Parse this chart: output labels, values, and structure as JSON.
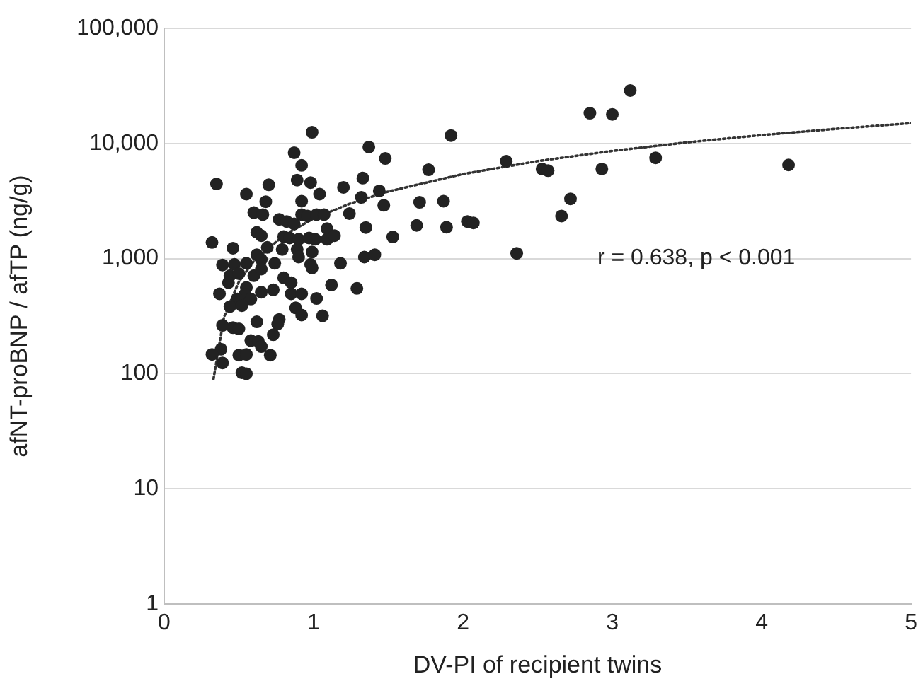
{
  "chart_data": {
    "type": "scatter",
    "xlabel": "DV-PI of recipient twins",
    "ylabel": "afNT-proBNP / afTP (ng/g)",
    "annotations": [
      "r = 0.638, p < 0.001"
    ],
    "xlim": [
      0,
      5
    ],
    "xticks": [
      0,
      1,
      2,
      3,
      4,
      5
    ],
    "ylim": [
      1,
      100000
    ],
    "yticks": [
      1,
      10,
      {
        "value": 100,
        "label": "100"
      },
      {
        "value": 1000,
        "label": "1,000"
      },
      {
        "value": 10000,
        "label": "10,000"
      },
      {
        "value": 100000,
        "label": "100,000"
      }
    ],
    "log": "y",
    "grid": "y",
    "legend": false,
    "marker": "circle",
    "series": [
      {
        "type": "scatter",
        "color": "#222222",
        "x": [
          0.99,
          1.37,
          1.48,
          0.87,
          0.92,
          0.35,
          0.7,
          0.89,
          0.98,
          1.33,
          1.2,
          1.44,
          0.55,
          0.68,
          0.92,
          1.04,
          1.32,
          1.47,
          0.6,
          0.66,
          0.77,
          0.82,
          0.92,
          0.96,
          1.02,
          1.07,
          0.87,
          1.24,
          1.09,
          1.35,
          0.62,
          0.65,
          0.32,
          0.8,
          0.84,
          0.9,
          0.97,
          1.01,
          1.09,
          1.14,
          1.53,
          0.46,
          0.69,
          0.79,
          0.89,
          0.99,
          0.62,
          0.39,
          0.47,
          0.55,
          0.65,
          0.74,
          0.9,
          0.98,
          1.18,
          1.34,
          1.41,
          0.44,
          0.5,
          0.6,
          0.65,
          0.8,
          0.99,
          0.43,
          0.55,
          0.73,
          0.85,
          1.12,
          1.29,
          0.37,
          0.54,
          0.65,
          0.85,
          0.92,
          0.49,
          0.58,
          1.02,
          0.44,
          0.52,
          0.88,
          0.92,
          1.06,
          0.39,
          0.46,
          0.5,
          0.62,
          0.77,
          0.76,
          0.73,
          0.58,
          0.63,
          0.65,
          0.71,
          0.38,
          0.32,
          0.5,
          0.55,
          0.39,
          0.52,
          0.55,
          1.92,
          1.77,
          2.29,
          2.53,
          2.57,
          2.93,
          2.85,
          3.0,
          3.12,
          3.29,
          4.18,
          1.71,
          1.87,
          2.72,
          2.66,
          1.69,
          1.89,
          2.03,
          2.07,
          2.36
        ],
        "values": [
          12500,
          9300,
          7400,
          8300,
          6450,
          4450,
          4370,
          4800,
          4570,
          5000,
          4150,
          3870,
          3630,
          3120,
          3150,
          3630,
          3400,
          2900,
          2510,
          2410,
          2190,
          2100,
          2410,
          2340,
          2410,
          2410,
          2000,
          2460,
          1820,
          1860,
          1690,
          1580,
          1380,
          1550,
          1510,
          1470,
          1510,
          1470,
          1470,
          1580,
          1540,
          1230,
          1250,
          1200,
          1200,
          1140,
          1080,
          880,
          890,
          910,
          980,
          910,
          1030,
          890,
          910,
          1030,
          1080,
          710,
          740,
          710,
          810,
          680,
          830,
          617,
          560,
          535,
          617,
          590,
          550,
          494,
          490,
          510,
          494,
          494,
          445,
          445,
          450,
          383,
          390,
          373,
          323,
          318,
          263,
          251,
          245,
          282,
          296,
          270,
          218,
          194,
          191,
          172,
          145,
          163,
          147,
          145,
          147,
          124,
          102,
          100,
          11700,
          5900,
          7000,
          6000,
          5800,
          6000,
          18300,
          17900,
          28800,
          7500,
          6500,
          3080,
          3150,
          3300,
          2340,
          1940,
          1870,
          2100,
          2040,
          1110
        ]
      },
      {
        "type": "line",
        "color": "#333333",
        "line_style": "dotted",
        "marker": "none",
        "x": [
          0.33,
          0.4,
          0.5,
          0.6,
          0.8,
          1,
          1.25,
          1.5,
          2,
          2.5,
          3,
          3.5,
          4,
          4.5,
          5
        ],
        "values": [
          90,
          310,
          630,
          950,
          1590,
          2230,
          3020,
          3820,
          5420,
          7020,
          8610,
          10210,
          11810,
          13400,
          15000
        ]
      }
    ]
  }
}
